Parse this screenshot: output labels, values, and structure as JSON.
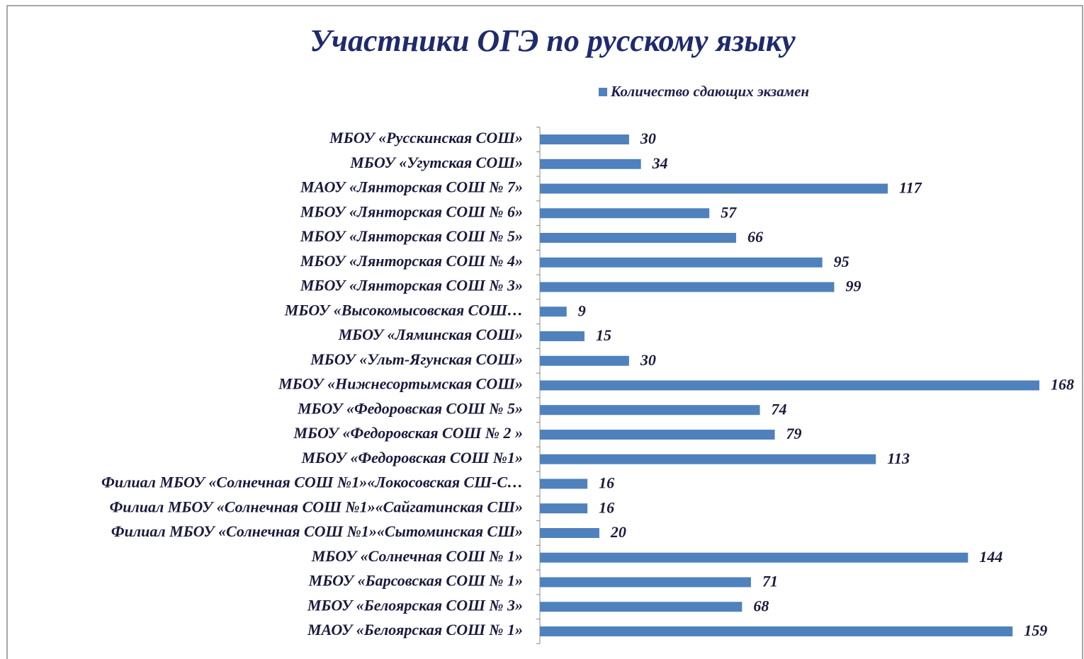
{
  "chart_data": {
    "type": "bar",
    "orientation": "horizontal",
    "title": "Участники ОГЭ по русскому языку",
    "categories": [
      "МБОУ «Русскинская СОШ»",
      "МБОУ «Угутская СОШ»",
      "МАОУ «Лянторская СОШ № 7»",
      "МБОУ «Лянторская СОШ № 6»",
      "МБОУ «Лянторская СОШ № 5»",
      "МБОУ «Лянторская СОШ № 4»",
      "МБОУ «Лянторская СОШ № 3»",
      "МБОУ «Высокомысовская СОШ…",
      "МБОУ «Ляминская СОШ»",
      "МБОУ «Ульт-Ягунская СОШ»",
      "МБОУ «Нижнесортымская СОШ»",
      "МБОУ «Федоровская СОШ № 5»",
      "МБОУ «Федоровская СОШ № 2 »",
      "МБОУ «Федоровская СОШ №1»",
      "Филиал МБОУ «Солнечная СОШ №1»«Локосовская СШ-С…",
      "Филиал МБОУ «Солнечная СОШ №1»«Сайгатинская СШ»",
      "Филиал МБОУ «Солнечная СОШ №1»«Сытоминская СШ»",
      "МБОУ «Солнечная СОШ № 1»",
      "МБОУ «Барсовская СОШ № 1»",
      "МБОУ «Белоярская СОШ № 3»",
      "МАОУ «Белоярская СОШ № 1»"
    ],
    "series": [
      {
        "name": "Количество сдающих экзамен",
        "color": "#4f81bd",
        "values": [
          30,
          34,
          117,
          57,
          66,
          95,
          99,
          9,
          15,
          30,
          168,
          74,
          79,
          113,
          16,
          16,
          20,
          144,
          71,
          68,
          159
        ]
      }
    ],
    "legend": "top"
  }
}
